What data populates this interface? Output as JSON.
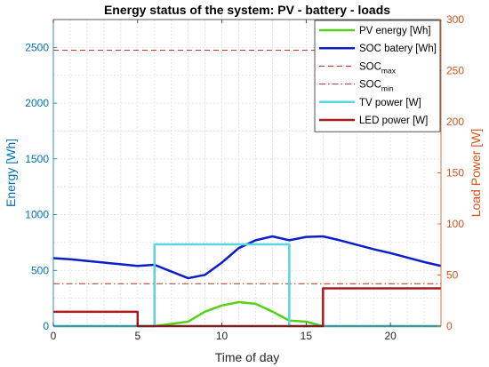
{
  "chart_data": {
    "type": "line",
    "title": "Energy status of the system: PV - battery - loads",
    "xlabel": "Time of day",
    "ylabel_left": "Energy [Wh]",
    "ylabel_right": "Load Power [W]",
    "xlim": [
      0,
      23
    ],
    "ylim_left": [
      0,
      2750
    ],
    "ylim_right": [
      0,
      300
    ],
    "x_ticks": [
      0,
      5,
      10,
      15,
      20
    ],
    "y_left_ticks": [
      0,
      500,
      1000,
      1500,
      2000,
      2500
    ],
    "y_right_ticks": [
      0,
      50,
      100,
      150,
      200,
      250,
      300
    ],
    "grid": true,
    "legend_position": "top-right",
    "colors": {
      "left_axis": "#0072BD",
      "right_axis": "#D95319",
      "pv": "#55d11a",
      "soc": "#0b1ec8",
      "soc_max": "#c0392b",
      "soc_min": "#b04a3a",
      "tv": "#5ad2e8",
      "led": "#a81c1c"
    },
    "series": [
      {
        "key": "pv",
        "name": "PV energy [Wh]",
        "axis": "left",
        "style": "solid",
        "x": [
          0,
          5,
          6,
          7,
          8,
          9,
          10,
          11,
          12,
          13,
          14,
          15,
          16,
          17,
          18,
          19,
          20,
          21,
          22,
          23
        ],
        "y": [
          0,
          0,
          0,
          20,
          40,
          130,
          185,
          215,
          200,
          130,
          50,
          40,
          0,
          0,
          0,
          0,
          0,
          0,
          0,
          0
        ]
      },
      {
        "key": "soc",
        "name": "SOC batery [Wh]",
        "axis": "left",
        "style": "solid",
        "x": [
          0,
          1,
          2,
          3,
          4,
          5,
          6,
          7,
          8,
          9,
          10,
          11,
          12,
          13,
          14,
          15,
          16,
          17,
          18,
          19,
          20,
          21,
          22,
          23
        ],
        "y": [
          610,
          600,
          585,
          570,
          555,
          540,
          550,
          490,
          430,
          460,
          570,
          700,
          770,
          805,
          770,
          800,
          805,
          770,
          730,
          690,
          655,
          615,
          575,
          540
        ]
      },
      {
        "key": "soc_max",
        "name": "SOC",
        "name_sub": "max",
        "axis": "left",
        "style": "dashed",
        "x": [
          0,
          23
        ],
        "y": [
          2475,
          2475
        ]
      },
      {
        "key": "soc_min",
        "name": "SOC",
        "name_sub": "min",
        "axis": "left",
        "style": "dashdot",
        "x": [
          0,
          23
        ],
        "y": [
          380,
          380
        ]
      },
      {
        "key": "tv",
        "name": "TV power [W]",
        "axis": "right",
        "style": "solid",
        "x": [
          0,
          6,
          6,
          14,
          14,
          23
        ],
        "y": [
          0,
          0,
          80,
          80,
          0,
          0
        ]
      },
      {
        "key": "led",
        "name": "LED power [W]",
        "axis": "right",
        "style": "solid",
        "x": [
          0,
          5,
          5,
          16,
          16,
          23
        ],
        "y": [
          14,
          14,
          0,
          0,
          37,
          37
        ]
      }
    ]
  }
}
